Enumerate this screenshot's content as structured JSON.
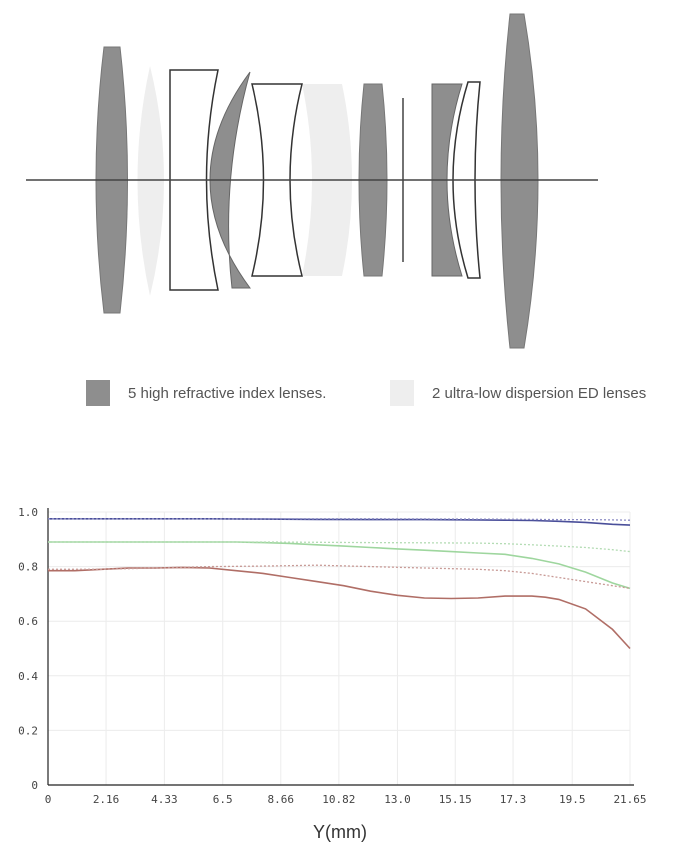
{
  "legend": {
    "items": [
      {
        "label": "5 high refractive index lenses.",
        "color": "#8e8e8e"
      },
      {
        "label": "2 ultra-low dispersion ED lenses",
        "color": "#eeeeee"
      }
    ]
  },
  "lens_colors": {
    "high_index": "#8e8e8e",
    "ed": "#eeeeee",
    "plain": "#ffffff",
    "outline": "#333333"
  },
  "chart_data": {
    "type": "line",
    "xlabel": "Y(mm)",
    "ylabel": "",
    "xlim": [
      0,
      21.65
    ],
    "ylim": [
      0,
      1.0
    ],
    "x_ticks": [
      "0",
      "2.16",
      "4.33",
      "6.5",
      "8.66",
      "10.82",
      "13.0",
      "15.15",
      "17.3",
      "19.5",
      "21.65"
    ],
    "y_ticks": [
      "0",
      "0.2",
      "0.4",
      "0.6",
      "0.8",
      "1.0"
    ],
    "grid": true,
    "series": [
      {
        "color": "#4a4f9a",
        "dashed": false,
        "x": [
          0,
          2,
          4,
          6,
          8,
          10,
          12,
          14,
          16,
          17,
          18,
          19,
          20,
          21,
          21.65
        ],
        "y": [
          0.975,
          0.975,
          0.975,
          0.975,
          0.974,
          0.973,
          0.972,
          0.972,
          0.971,
          0.97,
          0.969,
          0.966,
          0.962,
          0.955,
          0.952
        ]
      },
      {
        "color": "#8c8cc4",
        "dashed": true,
        "x": [
          0,
          4,
          8,
          12,
          16,
          18,
          19,
          20,
          21,
          21.65
        ],
        "y": [
          0.975,
          0.975,
          0.975,
          0.975,
          0.974,
          0.973,
          0.972,
          0.972,
          0.971,
          0.97
        ]
      },
      {
        "color": "#9ed69e",
        "dashed": false,
        "x": [
          0,
          2,
          4,
          6,
          7,
          8,
          9,
          10,
          11,
          12,
          13,
          14,
          15,
          16,
          17,
          18,
          19,
          20,
          21,
          21.65
        ],
        "y": [
          0.89,
          0.89,
          0.89,
          0.89,
          0.89,
          0.888,
          0.885,
          0.88,
          0.875,
          0.87,
          0.865,
          0.86,
          0.855,
          0.85,
          0.845,
          0.83,
          0.81,
          0.78,
          0.74,
          0.72
        ]
      },
      {
        "color": "#b4dcb4",
        "dashed": true,
        "x": [
          0,
          4,
          8,
          12,
          14,
          16,
          17,
          18,
          19,
          20,
          21,
          21.65
        ],
        "y": [
          0.89,
          0.89,
          0.89,
          0.888,
          0.887,
          0.886,
          0.884,
          0.88,
          0.875,
          0.87,
          0.862,
          0.855
        ]
      },
      {
        "color": "#b06e66",
        "dashed": false,
        "x": [
          0,
          1,
          2,
          3,
          4,
          5,
          6,
          7,
          8,
          9,
          10,
          11,
          12,
          13,
          14,
          15,
          16,
          17,
          18,
          18.5,
          19,
          20,
          21,
          21.65
        ],
        "y": [
          0.785,
          0.785,
          0.79,
          0.795,
          0.795,
          0.797,
          0.795,
          0.785,
          0.775,
          0.76,
          0.745,
          0.73,
          0.71,
          0.695,
          0.685,
          0.683,
          0.685,
          0.692,
          0.692,
          0.688,
          0.68,
          0.645,
          0.57,
          0.5
        ]
      },
      {
        "color": "#c89a96",
        "dashed": true,
        "x": [
          0,
          2,
          4,
          6,
          8,
          10,
          12,
          14,
          16,
          17,
          18,
          19,
          20,
          21,
          21.65
        ],
        "y": [
          0.79,
          0.79,
          0.795,
          0.8,
          0.802,
          0.805,
          0.8,
          0.795,
          0.79,
          0.785,
          0.775,
          0.76,
          0.745,
          0.73,
          0.72
        ]
      }
    ]
  }
}
